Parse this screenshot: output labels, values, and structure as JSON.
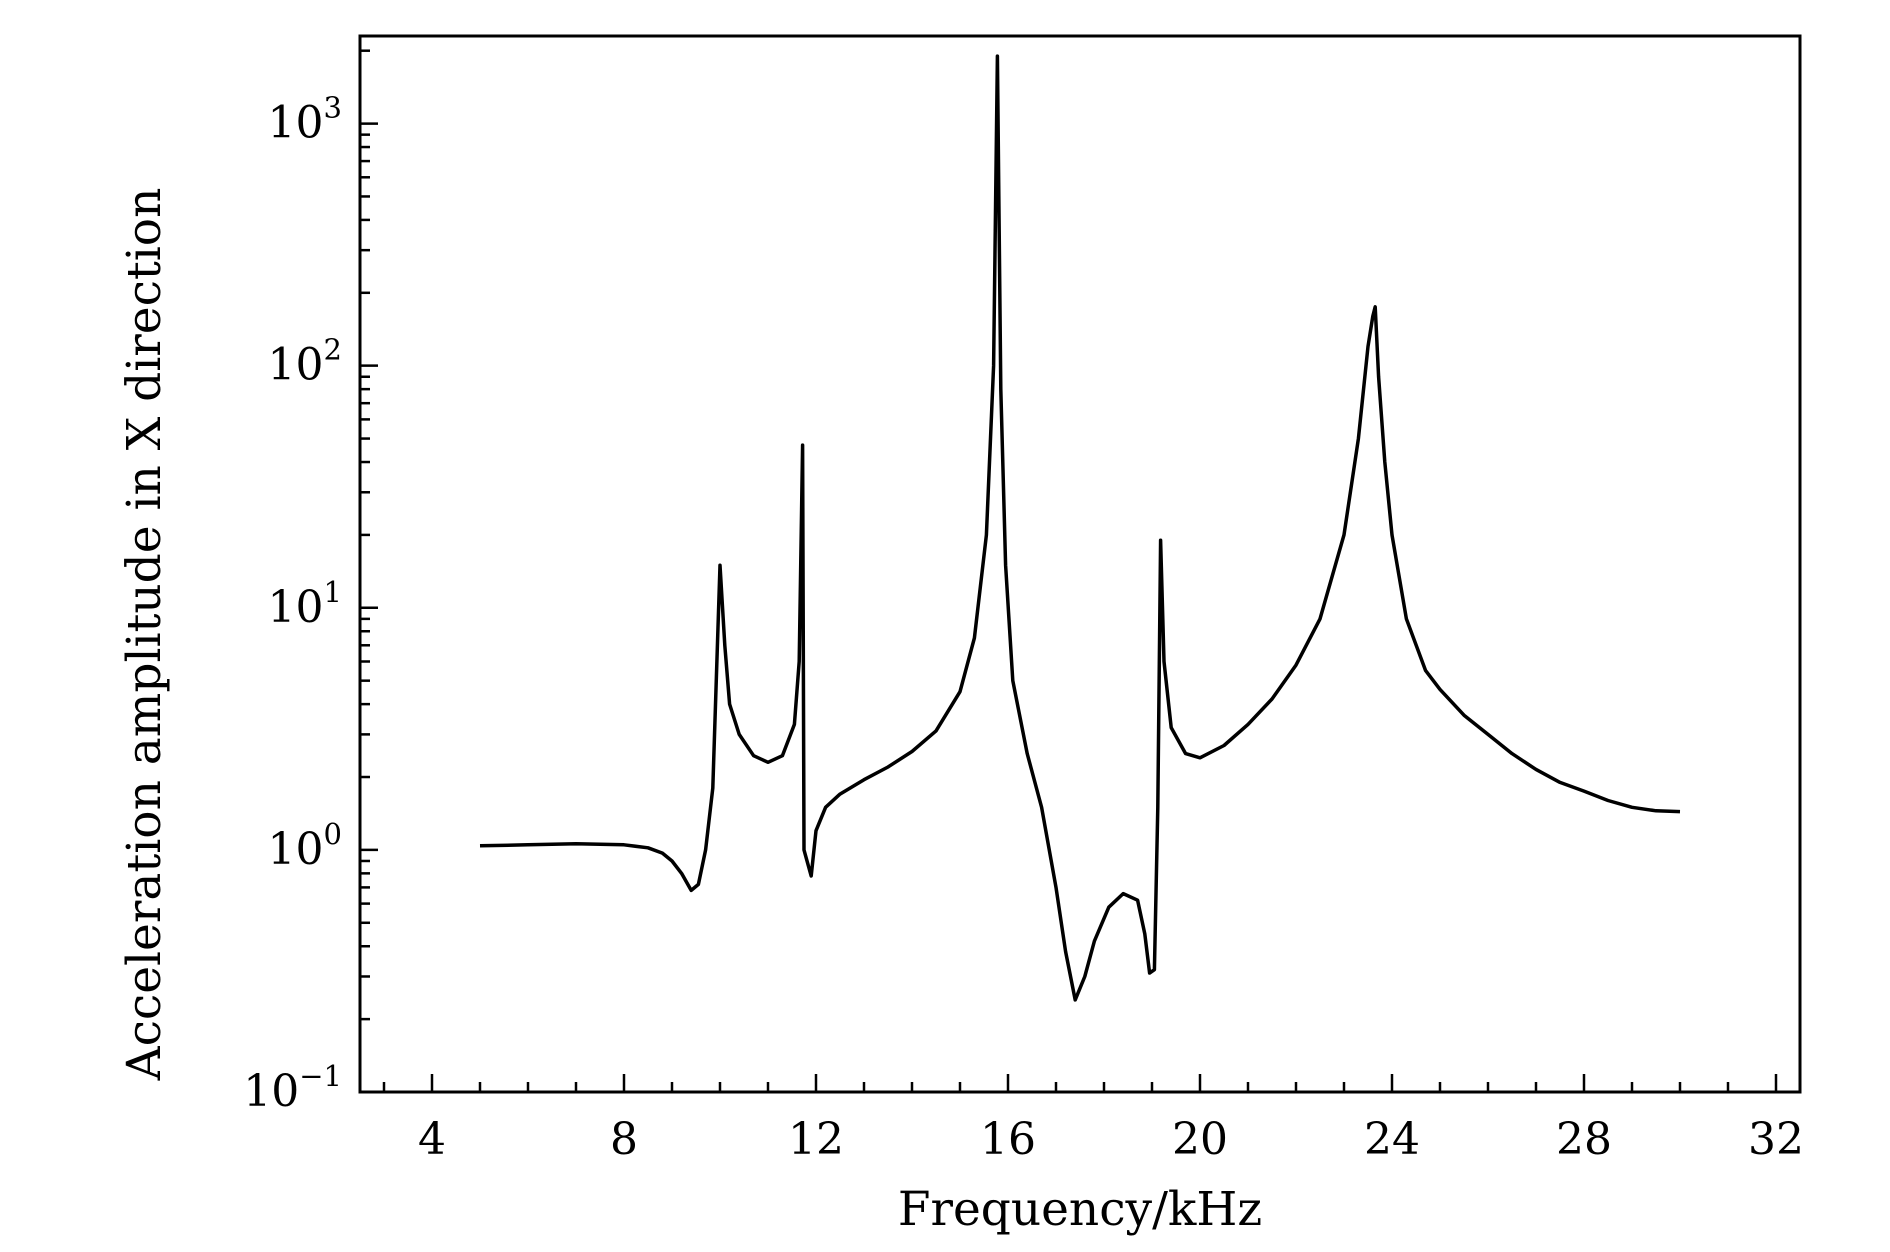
{
  "chart_data": {
    "type": "line",
    "title": "",
    "xlabel": "Frequency/kHz",
    "ylabel": "Acceleration amplitude in X direction",
    "xlim": [
      2.5,
      32.5
    ],
    "ylim": [
      0.1,
      2300
    ],
    "y_scale": "log",
    "grid": false,
    "x_ticks": [
      4,
      8,
      12,
      16,
      20,
      24,
      28,
      32
    ],
    "y_ticks": [
      {
        "value": 0.1,
        "base": "10",
        "exp": "−1"
      },
      {
        "value": 1,
        "base": "10",
        "exp": "0"
      },
      {
        "value": 10,
        "base": "10",
        "exp": "1"
      },
      {
        "value": 100,
        "base": "10",
        "exp": "2"
      },
      {
        "value": 1000,
        "base": "10",
        "exp": "3"
      }
    ],
    "series": [
      {
        "color": "#000000",
        "points": [
          [
            5.0,
            1.04
          ],
          [
            6.0,
            1.05
          ],
          [
            7.0,
            1.06
          ],
          [
            8.0,
            1.05
          ],
          [
            8.5,
            1.02
          ],
          [
            8.8,
            0.97
          ],
          [
            9.0,
            0.9
          ],
          [
            9.2,
            0.8
          ],
          [
            9.4,
            0.68
          ],
          [
            9.55,
            0.72
          ],
          [
            9.7,
            1.0
          ],
          [
            9.85,
            1.8
          ],
          [
            10.0,
            15.0
          ],
          [
            10.1,
            7.0
          ],
          [
            10.2,
            4.0
          ],
          [
            10.4,
            3.0
          ],
          [
            10.7,
            2.45
          ],
          [
            11.0,
            2.3
          ],
          [
            11.3,
            2.45
          ],
          [
            11.55,
            3.3
          ],
          [
            11.65,
            6.0
          ],
          [
            11.72,
            47.0
          ],
          [
            11.75,
            1.0
          ],
          [
            11.8,
            0.92
          ],
          [
            11.9,
            0.78
          ],
          [
            12.0,
            1.2
          ],
          [
            12.2,
            1.5
          ],
          [
            12.5,
            1.7
          ],
          [
            13.0,
            1.95
          ],
          [
            13.5,
            2.2
          ],
          [
            14.0,
            2.55
          ],
          [
            14.5,
            3.1
          ],
          [
            15.0,
            4.5
          ],
          [
            15.3,
            7.5
          ],
          [
            15.55,
            20.0
          ],
          [
            15.7,
            100.0
          ],
          [
            15.78,
            1900.0
          ],
          [
            15.85,
            80.0
          ],
          [
            15.95,
            15.0
          ],
          [
            16.1,
            5.0
          ],
          [
            16.4,
            2.5
          ],
          [
            16.7,
            1.5
          ],
          [
            17.0,
            0.7
          ],
          [
            17.2,
            0.38
          ],
          [
            17.4,
            0.24
          ],
          [
            17.6,
            0.3
          ],
          [
            17.8,
            0.42
          ],
          [
            18.1,
            0.58
          ],
          [
            18.4,
            0.66
          ],
          [
            18.7,
            0.62
          ],
          [
            18.85,
            0.45
          ],
          [
            18.95,
            0.31
          ],
          [
            19.05,
            0.32
          ],
          [
            19.12,
            1.5
          ],
          [
            19.18,
            19.0
          ],
          [
            19.25,
            6.0
          ],
          [
            19.4,
            3.2
          ],
          [
            19.7,
            2.5
          ],
          [
            20.0,
            2.4
          ],
          [
            20.5,
            2.7
          ],
          [
            21.0,
            3.3
          ],
          [
            21.5,
            4.2
          ],
          [
            22.0,
            5.8
          ],
          [
            22.5,
            9.0
          ],
          [
            23.0,
            20.0
          ],
          [
            23.3,
            50.0
          ],
          [
            23.5,
            120.0
          ],
          [
            23.6,
            160.0
          ],
          [
            23.65,
            175.0
          ],
          [
            23.72,
            90.0
          ],
          [
            23.85,
            40.0
          ],
          [
            24.0,
            20.0
          ],
          [
            24.3,
            9.0
          ],
          [
            24.7,
            5.5
          ],
          [
            25.0,
            4.6
          ],
          [
            25.5,
            3.6
          ],
          [
            26.0,
            3.0
          ],
          [
            26.5,
            2.5
          ],
          [
            27.0,
            2.15
          ],
          [
            27.5,
            1.9
          ],
          [
            28.0,
            1.75
          ],
          [
            28.5,
            1.6
          ],
          [
            29.0,
            1.5
          ],
          [
            29.5,
            1.45
          ],
          [
            30.0,
            1.44
          ]
        ]
      }
    ]
  }
}
